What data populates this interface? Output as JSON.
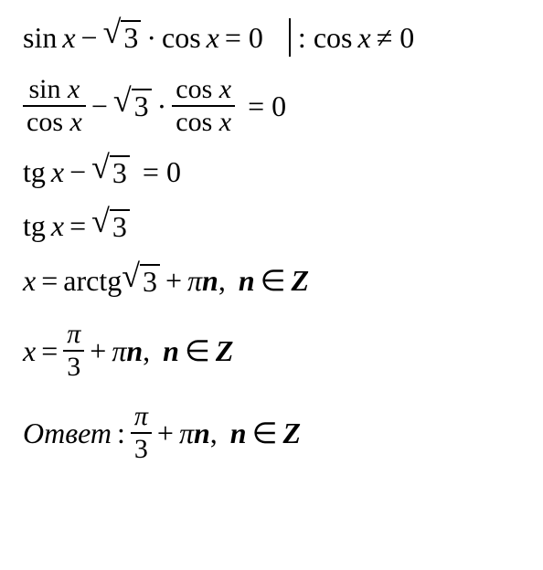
{
  "line1": {
    "eq_left": "sin",
    "var": "x",
    "minus": "−",
    "sqrt_val": "3",
    "dot": "·",
    "cos": "cos",
    "eq_zero": "= 0",
    "divider_text": ": cos",
    "ne": "≠ 0"
  },
  "line2": {
    "num1": "sin",
    "den1": "cos",
    "var": "x",
    "minus": "−",
    "sqrt_val": "3",
    "dot": "·",
    "num2": "cos",
    "den2": "cos",
    "eq_zero": "= 0"
  },
  "line3": {
    "tg": "tg",
    "var": "x",
    "minus": "−",
    "sqrt_val": "3",
    "eq_zero": "= 0"
  },
  "line4": {
    "tg": "tg",
    "var": "x",
    "eq": "=",
    "sqrt_val": "3"
  },
  "line5": {
    "var": "x",
    "eq": "=",
    "arctg": "arctg",
    "sqrt_val": "3",
    "plus": "+",
    "pi": "π",
    "n": "n",
    "comma": ",",
    "n_in": "n",
    "in": "∈",
    "Z": "Z"
  },
  "line6": {
    "var": "x",
    "eq": "=",
    "num": "π",
    "den": "3",
    "plus": "+",
    "pi": "π",
    "n": "n",
    "comma": ",",
    "n_in": "n",
    "in": "∈",
    "Z": "Z"
  },
  "line7": {
    "answer": "Ответ",
    "colon": ":",
    "num": "π",
    "den": "3",
    "plus": "+",
    "pi": "π",
    "n": "n",
    "comma": ",",
    "n_in": "n",
    "in": "∈",
    "Z": "Z"
  }
}
